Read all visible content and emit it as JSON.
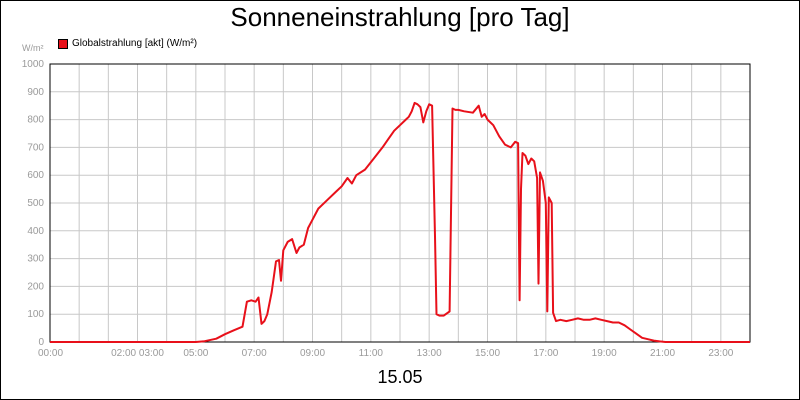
{
  "chart_data": {
    "type": "line",
    "title": "Sonneneinstrahlung [pro Tag]",
    "ylabel": "W/m²",
    "xlabel": "15.05",
    "ylim": [
      0,
      1000
    ],
    "xlim_hours": [
      0,
      24
    ],
    "y_ticks": [
      "0",
      "100",
      "200",
      "300",
      "400",
      "500",
      "600",
      "700",
      "800",
      "900",
      "1000"
    ],
    "x_ticks": [
      {
        "h": 0,
        "label": "00:00"
      },
      {
        "h": 3,
        "label": "02:00 03:00"
      },
      {
        "h": 5,
        "label": "05:00"
      },
      {
        "h": 7,
        "label": "07:00"
      },
      {
        "h": 9,
        "label": "09:00"
      },
      {
        "h": 11,
        "label": "11:00"
      },
      {
        "h": 13,
        "label": "13:00"
      },
      {
        "h": 15,
        "label": "15:00"
      },
      {
        "h": 17,
        "label": "17:00"
      },
      {
        "h": 19,
        "label": "19:00"
      },
      {
        "h": 21,
        "label": "21:00"
      },
      {
        "h": 23,
        "label": "23:00"
      }
    ],
    "grid": true,
    "legend_position": "top-left",
    "series": [
      {
        "name": "Globalstrahlung [akt] (W/m²)",
        "color": "#e8101a",
        "x": [
          0,
          5.0,
          5.3,
          5.7,
          6.0,
          6.3,
          6.6,
          6.75,
          6.9,
          7.05,
          7.15,
          7.25,
          7.35,
          7.45,
          7.6,
          7.75,
          7.85,
          7.92,
          8.0,
          8.15,
          8.3,
          8.45,
          8.55,
          8.7,
          8.85,
          9.0,
          9.2,
          9.5,
          9.8,
          10.0,
          10.2,
          10.35,
          10.5,
          10.8,
          11.1,
          11.4,
          11.6,
          11.8,
          12.0,
          12.2,
          12.3,
          12.4,
          12.5,
          12.6,
          12.7,
          12.8,
          12.9,
          13.0,
          13.1,
          13.2,
          13.25,
          13.35,
          13.5,
          13.7,
          13.8,
          13.9,
          14.0,
          14.2,
          14.5,
          14.7,
          14.8,
          14.9,
          15.0,
          15.2,
          15.4,
          15.6,
          15.8,
          15.95,
          16.05,
          16.1,
          16.15,
          16.2,
          16.3,
          16.4,
          16.5,
          16.6,
          16.7,
          16.75,
          16.8,
          16.9,
          17.0,
          17.05,
          17.1,
          17.2,
          17.25,
          17.35,
          17.5,
          17.7,
          17.9,
          18.1,
          18.3,
          18.5,
          18.7,
          18.9,
          19.1,
          19.3,
          19.5,
          19.7,
          19.9,
          20.1,
          20.3,
          20.5,
          20.7,
          20.9,
          21.1,
          21.3,
          24.0
        ],
        "values": [
          0,
          0,
          3,
          12,
          28,
          42,
          55,
          145,
          150,
          145,
          160,
          65,
          75,
          100,
          180,
          290,
          295,
          220,
          330,
          360,
          370,
          320,
          340,
          350,
          410,
          440,
          480,
          510,
          540,
          560,
          590,
          570,
          600,
          620,
          660,
          700,
          730,
          760,
          780,
          800,
          810,
          830,
          860,
          855,
          845,
          790,
          830,
          855,
          850,
          380,
          100,
          95,
          95,
          110,
          840,
          835,
          835,
          830,
          825,
          850,
          810,
          820,
          800,
          780,
          740,
          710,
          700,
          720,
          715,
          150,
          550,
          680,
          670,
          640,
          660,
          650,
          590,
          210,
          610,
          580,
          500,
          110,
          520,
          500,
          105,
          75,
          80,
          75,
          80,
          85,
          80,
          80,
          85,
          80,
          75,
          70,
          70,
          60,
          45,
          30,
          15,
          10,
          5,
          2,
          0,
          0,
          0
        ]
      }
    ]
  }
}
